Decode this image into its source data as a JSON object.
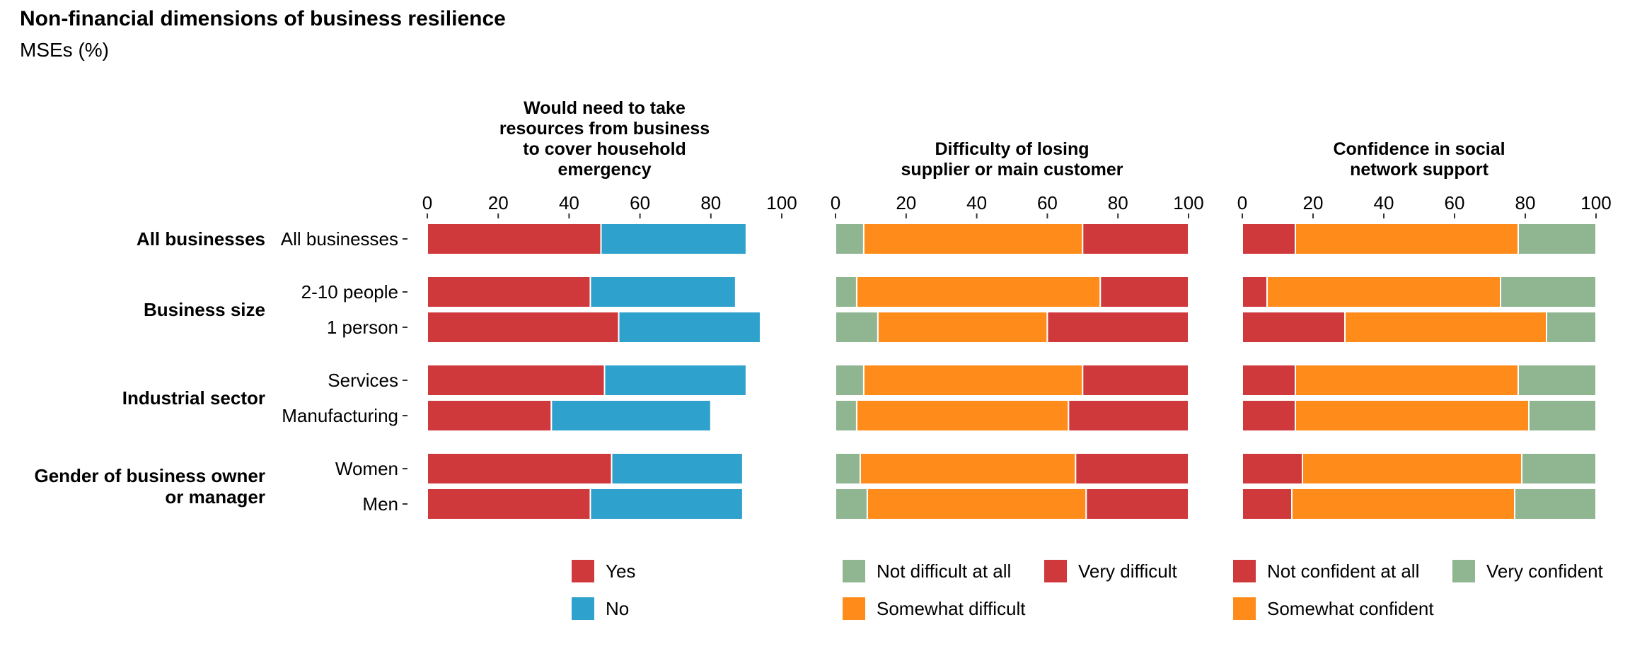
{
  "title": "Non-financial dimensions of business resilience",
  "subtitle": "MSEs (%)",
  "chart_data": {
    "type": "bar",
    "orientation": "horizontal",
    "stacked": true,
    "xlim": [
      0,
      100
    ],
    "x_ticks": [
      0,
      20,
      40,
      60,
      80,
      100
    ],
    "groups": [
      {
        "label": "All businesses",
        "rows": [
          "All businesses"
        ]
      },
      {
        "label": "Business size",
        "rows": [
          "2-10 people",
          "1 person"
        ]
      },
      {
        "label": "Industrial sector",
        "rows": [
          "Services",
          "Manufacturing"
        ]
      },
      {
        "label": "Gender of business owner or manager",
        "label_lines": [
          "Gender of business owner",
          "or manager"
        ],
        "rows": [
          "Women",
          "Men"
        ]
      }
    ],
    "categories": [
      "All businesses",
      "2-10 people",
      "1 person",
      "Services",
      "Manufacturing",
      "Women",
      "Men"
    ],
    "panels": [
      {
        "title_lines": [
          "Would need to take",
          "resources from business",
          "to cover household",
          "emergency"
        ],
        "series": [
          {
            "name": "Yes",
            "color": "#d0393c",
            "values": [
              49,
              46,
              54,
              50,
              35,
              52,
              46
            ]
          },
          {
            "name": "No",
            "color": "#2ea1cc",
            "values": [
              41,
              41,
              40,
              40,
              45,
              37,
              43
            ]
          }
        ],
        "legend": [
          {
            "name": "Yes",
            "color": "#d0393c"
          },
          {
            "name": "No",
            "color": "#2ea1cc"
          }
        ]
      },
      {
        "title_lines": [
          "Difficulty of losing",
          "supplier or main customer"
        ],
        "series": [
          {
            "name": "Not difficult at all",
            "color": "#8fb591",
            "values": [
              8,
              6,
              12,
              8,
              6,
              7,
              9
            ]
          },
          {
            "name": "Somewhat difficult",
            "color": "#ff8c1a",
            "values": [
              62,
              69,
              48,
              62,
              60,
              61,
              62
            ]
          },
          {
            "name": "Very difficult",
            "color": "#d0393c",
            "values": [
              30,
              25,
              40,
              30,
              34,
              32,
              29
            ]
          }
        ],
        "legend": [
          {
            "name": "Not difficult at all",
            "color": "#8fb591"
          },
          {
            "name": "Very difficult",
            "color": "#d0393c"
          },
          {
            "name": "Somewhat difficult",
            "color": "#ff8c1a"
          }
        ]
      },
      {
        "title_lines": [
          "Confidence in social",
          "network support"
        ],
        "series": [
          {
            "name": "Not confident at all",
            "color": "#d0393c",
            "values": [
              15,
              7,
              29,
              15,
              15,
              17,
              14
            ]
          },
          {
            "name": "Somewhat confident",
            "color": "#ff8c1a",
            "values": [
              63,
              66,
              57,
              63,
              66,
              62,
              63
            ]
          },
          {
            "name": "Very confident",
            "color": "#8fb591",
            "values": [
              22,
              27,
              14,
              22,
              19,
              21,
              23
            ]
          }
        ],
        "legend": [
          {
            "name": "Not confident at all",
            "color": "#d0393c"
          },
          {
            "name": "Very confident",
            "color": "#8fb591"
          },
          {
            "name": "Somewhat confident",
            "color": "#ff8c1a"
          }
        ]
      }
    ]
  }
}
